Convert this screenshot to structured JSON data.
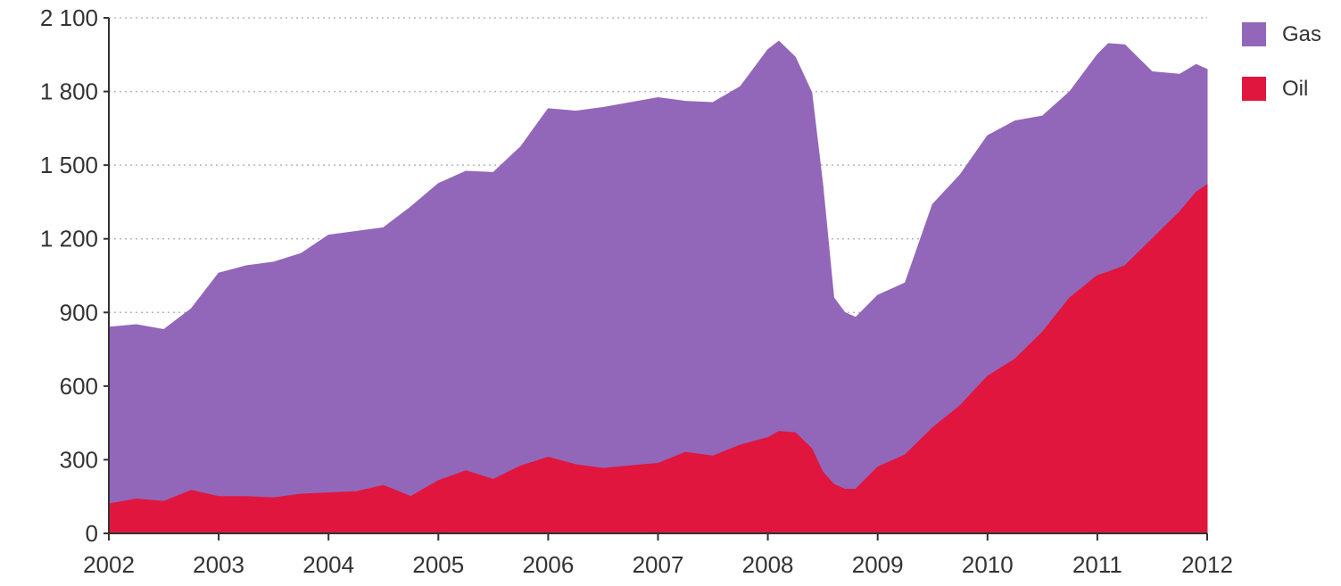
{
  "chart_data": {
    "type": "area",
    "stacked": true,
    "x": [
      2002.0,
      2002.25,
      2002.5,
      2002.75,
      2003.0,
      2003.25,
      2003.5,
      2003.75,
      2004.0,
      2004.25,
      2004.5,
      2004.75,
      2005.0,
      2005.25,
      2005.5,
      2005.75,
      2006.0,
      2006.25,
      2006.5,
      2006.75,
      2007.0,
      2007.25,
      2007.5,
      2007.75,
      2008.0,
      2008.1,
      2008.25,
      2008.4,
      2008.5,
      2008.6,
      2008.7,
      2008.8,
      2009.0,
      2009.25,
      2009.5,
      2009.75,
      2010.0,
      2010.25,
      2010.5,
      2010.75,
      2011.0,
      2011.1,
      2011.25,
      2011.5,
      2011.75,
      2011.9,
      2012.0
    ],
    "series": [
      {
        "name": "Oil",
        "color": "#e0163f",
        "values": [
          120,
          140,
          130,
          175,
          150,
          150,
          145,
          160,
          165,
          170,
          195,
          150,
          215,
          255,
          220,
          275,
          310,
          280,
          265,
          275,
          285,
          330,
          315,
          360,
          390,
          415,
          410,
          345,
          250,
          200,
          180,
          180,
          270,
          320,
          430,
          520,
          640,
          710,
          820,
          960,
          1050,
          1065,
          1090,
          1200,
          1310,
          1390,
          1420
        ]
      },
      {
        "name": "Gas",
        "color": "#9267ba",
        "values": [
          720,
          710,
          700,
          740,
          910,
          940,
          960,
          980,
          1050,
          1060,
          1050,
          1180,
          1210,
          1220,
          1250,
          1300,
          1420,
          1440,
          1470,
          1480,
          1490,
          1430,
          1440,
          1460,
          1580,
          1590,
          1530,
          1450,
          1170,
          760,
          720,
          700,
          700,
          700,
          910,
          940,
          980,
          970,
          880,
          840,
          900,
          930,
          900,
          680,
          560,
          520,
          470
        ]
      }
    ],
    "xlim": [
      2002,
      2012
    ],
    "ylim": [
      0,
      2100
    ],
    "y_ticks": [
      "0",
      "300",
      "600",
      "900",
      "1 200",
      "1 500",
      "1 800",
      "2 100"
    ],
    "y_tick_values": [
      0,
      300,
      600,
      900,
      1200,
      1500,
      1800,
      2100
    ],
    "x_ticks": [
      "2002",
      "2003",
      "2004",
      "2005",
      "2006",
      "2007",
      "2008",
      "2009",
      "2010",
      "2011",
      "2012"
    ],
    "x_tick_values": [
      2002,
      2003,
      2004,
      2005,
      2006,
      2007,
      2008,
      2009,
      2010,
      2011,
      2012
    ],
    "grid": "horizontal-dotted",
    "legend_position": "right",
    "legend": [
      {
        "label": "Gas",
        "color": "#9267ba"
      },
      {
        "label": "Oil",
        "color": "#e0163f"
      }
    ],
    "title": "",
    "xlabel": "",
    "ylabel": ""
  }
}
